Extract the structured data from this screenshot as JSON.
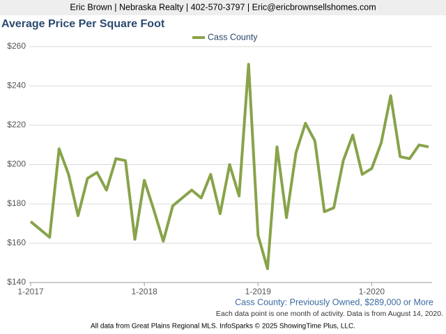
{
  "header": "Eric Brown | Nebraska Realty | 402-570-3797 | Eric@ericbrownsellshomes.com",
  "chart_data": {
    "type": "line",
    "title": "Average Price Per Square Foot",
    "categories": [
      "1-2017",
      null,
      null,
      null,
      null,
      null,
      null,
      null,
      null,
      null,
      null,
      null,
      "1-2018",
      null,
      null,
      null,
      null,
      null,
      null,
      null,
      null,
      null,
      null,
      null,
      "1-2019",
      null,
      null,
      null,
      null,
      null,
      null,
      null,
      null,
      null,
      null,
      null,
      "1-2020",
      null,
      null,
      null,
      null,
      null,
      null
    ],
    "series": [
      {
        "name": "Cass County",
        "color": "#88a34a",
        "values": [
          171,
          167,
          163,
          208,
          195,
          174,
          193,
          196,
          187,
          203,
          202,
          162,
          192,
          177,
          161,
          179,
          183,
          187,
          183,
          195,
          175,
          200,
          184,
          251,
          164,
          147,
          209,
          173,
          206,
          221,
          212,
          176,
          178,
          202,
          215,
          195,
          198,
          211,
          235,
          204,
          203,
          210,
          209
        ]
      }
    ],
    "ylim": [
      140,
      260
    ],
    "yticks": [
      {
        "value": 140,
        "label": "$140"
      },
      {
        "value": 160,
        "label": "$160"
      },
      {
        "value": 180,
        "label": "$180"
      },
      {
        "value": 200,
        "label": "$200"
      },
      {
        "value": 220,
        "label": "$220"
      },
      {
        "value": 240,
        "label": "$240"
      },
      {
        "value": 260,
        "label": "$260"
      }
    ],
    "grid": true,
    "legend": "top",
    "subtitle": "Cass County: Previously Owned, $289,000 or More",
    "note": "Each data point is one month of activity. Data is from August 14, 2020.",
    "footer": "All data from Great Plains Regional MLS. InfoSparks © 2025 ShowingTime Plus, LLC."
  }
}
